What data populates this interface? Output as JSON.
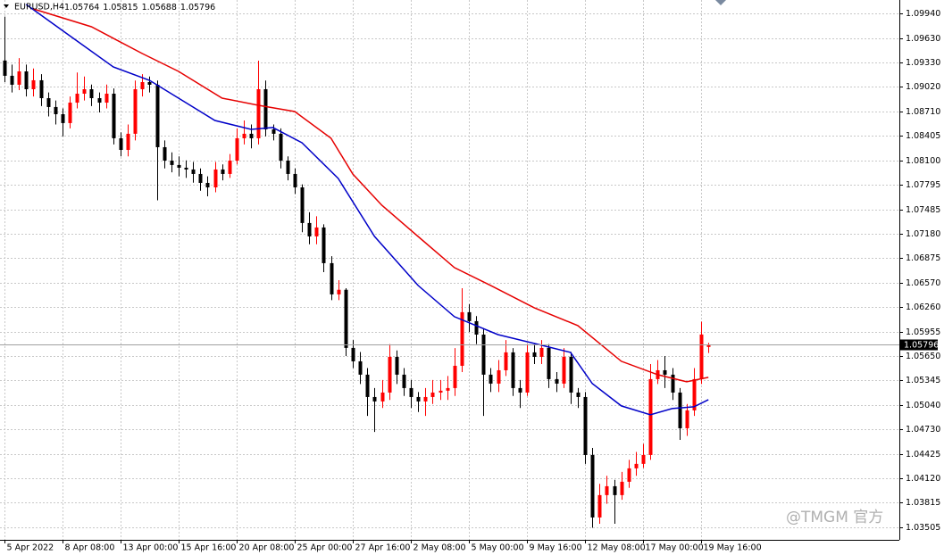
{
  "chart_data": {
    "type": "candlestick",
    "symbol": "EURUSD,H4",
    "watermark": "@TMGM 官方",
    "up_color": "#ff0000",
    "down_color": "#000000",
    "grid": true,
    "ylim": [
      1.03349,
      1.10108
    ],
    "yticks": [
      {
        "value": 1.0994,
        "label": "1.09940"
      },
      {
        "value": 1.0963,
        "label": "1.09630"
      },
      {
        "value": 1.0933,
        "label": "1.09330"
      },
      {
        "value": 1.0902,
        "label": "1.09020"
      },
      {
        "value": 1.0871,
        "label": "1.08710"
      },
      {
        "value": 1.08405,
        "label": "1.08405"
      },
      {
        "value": 1.081,
        "label": "1.08100"
      },
      {
        "value": 1.07795,
        "label": "1.07795"
      },
      {
        "value": 1.07485,
        "label": "1.07485"
      },
      {
        "value": 1.0718,
        "label": "1.07180"
      },
      {
        "value": 1.06875,
        "label": "1.06875"
      },
      {
        "value": 1.0657,
        "label": "1.06570"
      },
      {
        "value": 1.0626,
        "label": "1.06260"
      },
      {
        "value": 1.05955,
        "label": "1.05955"
      },
      {
        "value": 1.0565,
        "label": "1.05650"
      },
      {
        "value": 1.05345,
        "label": "1.05345"
      },
      {
        "value": 1.0504,
        "label": "1.05040"
      },
      {
        "value": 1.0473,
        "label": "1.04730"
      },
      {
        "value": 1.04425,
        "label": "1.04425"
      },
      {
        "value": 1.0412,
        "label": "1.04120"
      },
      {
        "value": 1.03815,
        "label": "1.03815"
      },
      {
        "value": 1.03505,
        "label": "1.03505"
      }
    ],
    "xlim": [
      -0.6,
      123.3
    ],
    "xticks": [
      {
        "value": 0,
        "label": "5 Apr 2022"
      },
      {
        "value": 8,
        "label": "8 Apr 08:00"
      },
      {
        "value": 16,
        "label": "13 Apr 00:00"
      },
      {
        "value": 24,
        "label": "15 Apr 16:00"
      },
      {
        "value": 32,
        "label": "20 Apr 08:00"
      },
      {
        "value": 40,
        "label": "25 Apr 00:00"
      },
      {
        "value": 48,
        "label": "27 Apr 16:00"
      },
      {
        "value": 56,
        "label": "2 May 08:00"
      },
      {
        "value": 64,
        "label": "5 May 00:00"
      },
      {
        "value": 72,
        "label": "9 May 16:00"
      },
      {
        "value": 80,
        "label": "12 May 08:00"
      },
      {
        "value": 88,
        "label": "17 May 00:00"
      },
      {
        "value": 96,
        "label": "19 May 16:00"
      }
    ],
    "candles": [
      [
        1.0935,
        1.099,
        1.0908,
        1.09159
      ],
      [
        1.09159,
        1.093,
        1.0895,
        1.09047
      ],
      [
        1.09047,
        1.0938,
        1.0898,
        1.09214
      ],
      [
        1.09214,
        1.093,
        1.089,
        1.08991
      ],
      [
        1.08991,
        1.0925,
        1.089,
        1.09103
      ],
      [
        1.09103,
        1.0918,
        1.0878,
        1.08879
      ],
      [
        1.08879,
        1.0895,
        1.0865,
        1.08768
      ],
      [
        1.08768,
        1.0885,
        1.0855,
        1.08678
      ],
      [
        1.08678,
        1.0875,
        1.084,
        1.08567
      ],
      [
        1.08567,
        1.089,
        1.085,
        1.08823
      ],
      [
        1.08823,
        1.092,
        1.0875,
        1.08935
      ],
      [
        1.08935,
        1.0915,
        1.0885,
        1.08991
      ],
      [
        1.08991,
        1.0905,
        1.0878,
        1.08879
      ],
      [
        1.08879,
        1.0895,
        1.087,
        1.08823
      ],
      [
        1.08823,
        1.0905,
        1.0875,
        1.08935
      ],
      [
        1.08935,
        1.09,
        1.083,
        1.08377
      ],
      [
        1.08377,
        1.0845,
        1.0815,
        1.08231
      ],
      [
        1.08231,
        1.0855,
        1.0815,
        1.08433
      ],
      [
        1.08433,
        1.091,
        1.0835,
        1.08991
      ],
      [
        1.08991,
        1.0918,
        1.089,
        1.0908
      ],
      [
        1.0908,
        1.0915,
        1.0895,
        1.09047
      ],
      [
        1.09047,
        1.091,
        1.076,
        1.08265
      ],
      [
        1.08265,
        1.0835,
        1.08,
        1.08097
      ],
      [
        1.08097,
        1.082,
        1.0795,
        1.08042
      ],
      [
        1.08042,
        1.0815,
        1.079,
        1.08008
      ],
      [
        1.08008,
        1.081,
        1.0788,
        1.07986
      ],
      [
        1.07986,
        1.0808,
        1.0782,
        1.0793
      ],
      [
        1.0793,
        1.08,
        1.0772,
        1.07818
      ],
      [
        1.07818,
        1.079,
        1.0765,
        1.07762
      ],
      [
        1.07762,
        1.0808,
        1.077,
        1.07986
      ],
      [
        1.07986,
        1.0805,
        1.0785,
        1.0793
      ],
      [
        1.0793,
        1.0818,
        1.0788,
        1.08097
      ],
      [
        1.08097,
        1.085,
        1.0805,
        1.08377
      ],
      [
        1.08377,
        1.086,
        1.083,
        1.08433
      ],
      [
        1.08433,
        1.0855,
        1.0825,
        1.08377
      ],
      [
        1.08377,
        1.09348,
        1.083,
        1.08991
      ],
      [
        1.08991,
        1.091,
        1.084,
        1.08488
      ],
      [
        1.08488,
        1.0855,
        1.0835,
        1.08433
      ],
      [
        1.08433,
        1.085,
        1.08,
        1.08097
      ],
      [
        1.08097,
        1.0815,
        1.0785,
        1.0793
      ],
      [
        1.0793,
        1.08,
        1.0768,
        1.07762
      ],
      [
        1.07762,
        1.078,
        1.072,
        1.07316
      ],
      [
        1.07316,
        1.0745,
        1.0705,
        1.07148
      ],
      [
        1.07148,
        1.074,
        1.0705,
        1.0726
      ],
      [
        1.0726,
        1.073,
        1.067,
        1.06813
      ],
      [
        1.06813,
        1.069,
        1.0635,
        1.06422
      ],
      [
        1.06422,
        1.066,
        1.0635,
        1.0648
      ],
      [
        1.0648,
        1.065,
        1.0565,
        1.05752
      ],
      [
        1.05752,
        1.0585,
        1.055,
        1.05584
      ],
      [
        1.05584,
        1.057,
        1.053,
        1.05417
      ],
      [
        1.05417,
        1.055,
        1.049,
        1.05137
      ],
      [
        1.05137,
        1.0525,
        1.047,
        1.05082
      ],
      [
        1.05082,
        1.0535,
        1.05,
        1.05193
      ],
      [
        1.05193,
        1.058,
        1.051,
        1.0564
      ],
      [
        1.0564,
        1.0572,
        1.053,
        1.05417
      ],
      [
        1.05417,
        1.055,
        1.0515,
        1.05249
      ],
      [
        1.05249,
        1.0535,
        1.05,
        1.05137
      ],
      [
        1.05137,
        1.052,
        1.0495,
        1.05082
      ],
      [
        1.05082,
        1.0525,
        1.049,
        1.05137
      ],
      [
        1.05137,
        1.0535,
        1.0505,
        1.05193
      ],
      [
        1.05193,
        1.0535,
        1.051,
        1.05216
      ],
      [
        1.05216,
        1.054,
        1.051,
        1.05249
      ],
      [
        1.05249,
        1.0575,
        1.0515,
        1.05528
      ],
      [
        1.05528,
        1.065,
        1.0545,
        1.06199
      ],
      [
        1.06199,
        1.063,
        1.0595,
        1.06087
      ],
      [
        1.06087,
        1.0615,
        1.058,
        1.05919
      ],
      [
        1.05919,
        1.06,
        1.049,
        1.05417
      ],
      [
        1.05417,
        1.055,
        1.052,
        1.05305
      ],
      [
        1.05305,
        1.056,
        1.052,
        1.05472
      ],
      [
        1.05472,
        1.0585,
        1.054,
        1.05696
      ],
      [
        1.05696,
        1.0575,
        1.0515,
        1.05249
      ],
      [
        1.05249,
        1.0535,
        1.05,
        1.05193
      ],
      [
        1.05193,
        1.058,
        1.0515,
        1.05696
      ],
      [
        1.05696,
        1.058,
        1.0555,
        1.0564
      ],
      [
        1.0564,
        1.0585,
        1.0555,
        1.05752
      ],
      [
        1.05752,
        1.058,
        1.0525,
        1.05361
      ],
      [
        1.05361,
        1.0545,
        1.052,
        1.05305
      ],
      [
        1.05305,
        1.0575,
        1.0525,
        1.0564
      ],
      [
        1.0564,
        1.057,
        1.0505,
        1.05193
      ],
      [
        1.05193,
        1.0525,
        1.05,
        1.05137
      ],
      [
        1.05137,
        1.052,
        1.043,
        1.04411
      ],
      [
        1.04411,
        1.045,
        1.035,
        1.03629
      ],
      [
        1.03629,
        1.0405,
        1.0355,
        1.03909
      ],
      [
        1.03909,
        1.0415,
        1.038,
        1.0402
      ],
      [
        1.0402,
        1.041,
        1.0355,
        1.03909
      ],
      [
        1.03909,
        1.042,
        1.0385,
        1.04076
      ],
      [
        1.04076,
        1.0435,
        1.04,
        1.04244
      ],
      [
        1.04244,
        1.0445,
        1.0415,
        1.043
      ],
      [
        1.043,
        1.0455,
        1.0425,
        1.04411
      ],
      [
        1.04411,
        1.0555,
        1.0435,
        1.05361
      ],
      [
        1.05361,
        1.056,
        1.053,
        1.05472
      ],
      [
        1.05472,
        1.0565,
        1.0525,
        1.05417
      ],
      [
        1.05417,
        1.055,
        1.051,
        1.05193
      ],
      [
        1.05193,
        1.0525,
        1.046,
        1.04746
      ],
      [
        1.04746,
        1.0505,
        1.0465,
        1.0497
      ],
      [
        1.0497,
        1.055,
        1.049,
        1.05361
      ],
      [
        1.05361,
        1.0608,
        1.053,
        1.0592
      ],
      [
        1.05764,
        1.05815,
        1.05688,
        1.05796
      ]
    ],
    "moving_averages": [
      {
        "color": "#0000c8",
        "x": [
          3,
          9,
          15,
          20,
          24,
          29,
          34,
          37,
          41,
          46,
          51,
          57,
          62,
          68,
          73,
          78,
          81,
          85,
          89,
          92,
          95,
          97
        ],
        "values": [
          1.10052,
          1.09661,
          1.0927,
          1.09103,
          1.08879,
          1.086,
          1.08488,
          1.08511,
          1.08321,
          1.07874,
          1.07148,
          1.06534,
          1.06143,
          1.05919,
          1.05808,
          1.05696,
          1.05305,
          1.05026,
          1.04914,
          1.04992,
          1.05015,
          1.05104
        ]
      },
      {
        "color": "#e60000",
        "x": [
          4,
          12,
          19,
          24,
          30,
          35,
          40,
          45,
          48,
          52,
          57,
          62,
          67,
          73,
          79,
          85,
          90,
          94,
          97
        ],
        "values": [
          1.09996,
          1.09773,
          1.09438,
          1.09214,
          1.08879,
          1.0879,
          1.08712,
          1.08377,
          1.0793,
          1.07539,
          1.07148,
          1.06757,
          1.06534,
          1.06255,
          1.06031,
          1.05584,
          1.05417,
          1.05327,
          1.05383
        ]
      }
    ]
  }
}
